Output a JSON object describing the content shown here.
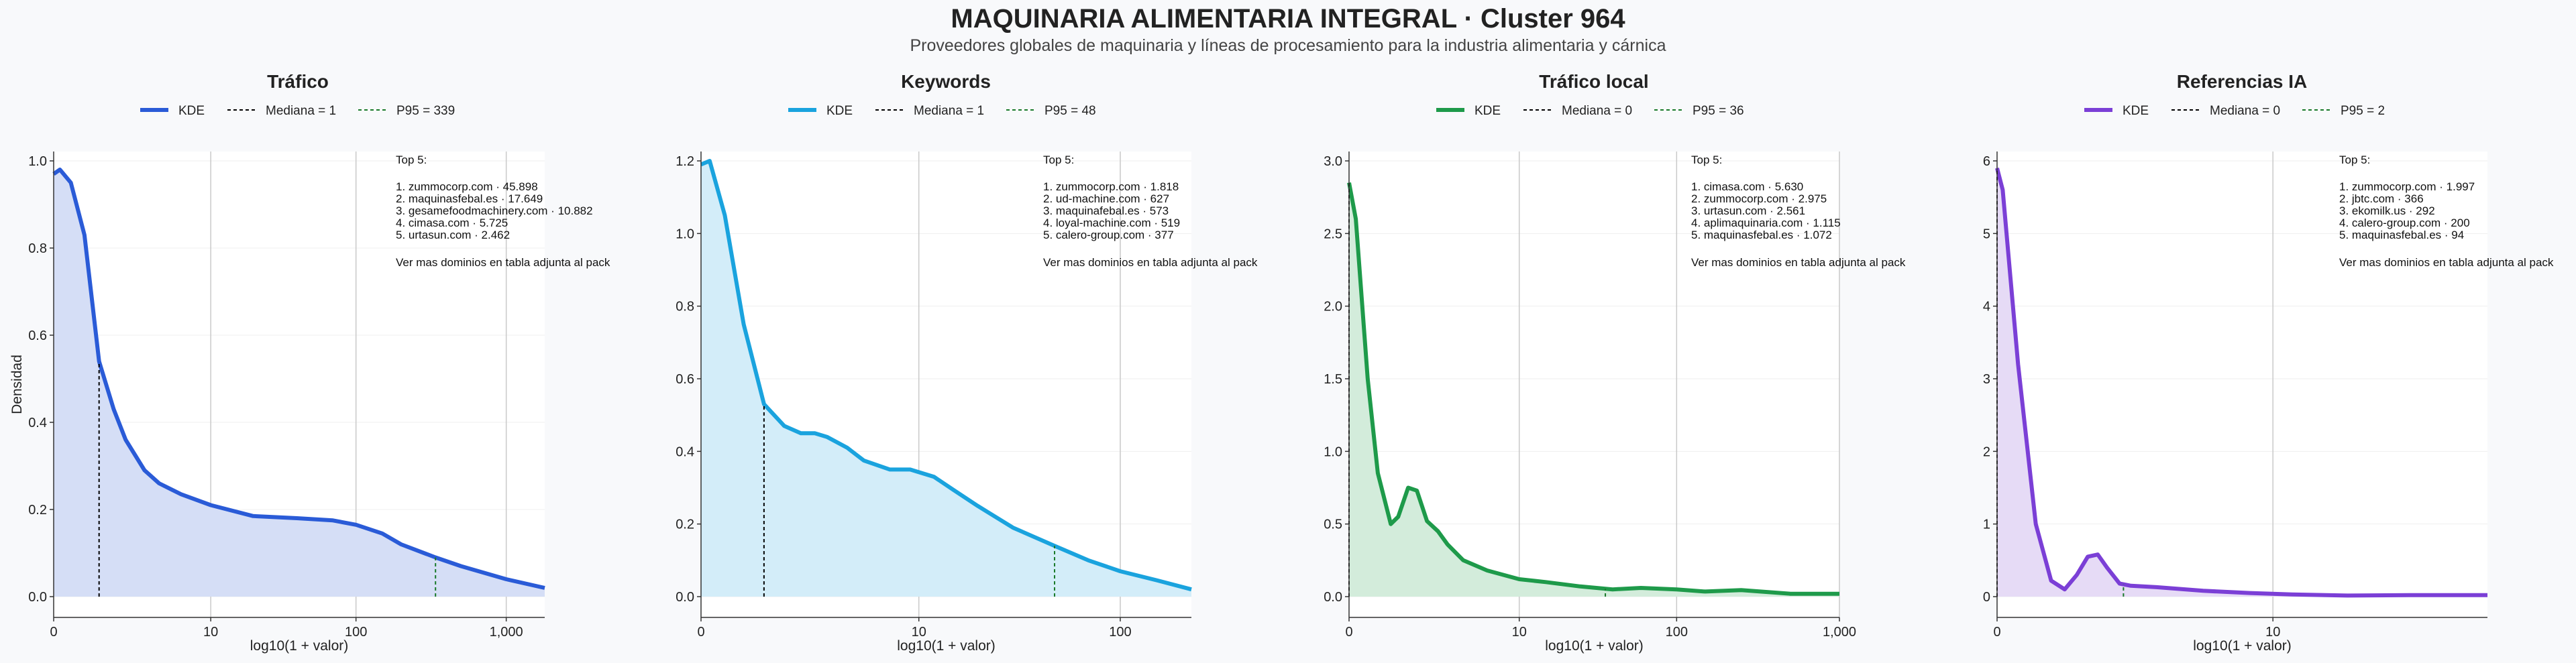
{
  "title": "MAQUINARIA ALIMENTARIA INTEGRAL · Cluster 964",
  "subtitle": "Proveedores globales de maquinaria y líneas de procesamiento para la industria alimentaria y cárnica",
  "chart_data": [
    {
      "type": "area",
      "title": "Tráfico",
      "color": "#2a5bd7",
      "fill": "#d5def6",
      "xlabel": "log10(1 + valor)",
      "ylabel": "Densidad",
      "x_scale": "log10(1+x)",
      "xlim": [
        0,
        1800
      ],
      "ylim": [
        0,
        1.0
      ],
      "xticks": [
        0,
        10,
        100,
        1000
      ],
      "xtick_labels": [
        "0",
        "10",
        "100",
        "1,000"
      ],
      "yticks": [
        0,
        0.2,
        0.4,
        0.6,
        0.8,
        1.0
      ],
      "ytick_labels": [
        "0.0",
        "0.2",
        "0.4",
        "0.6",
        "0.8",
        "1.0"
      ],
      "grid": "vertical at x ticks",
      "legend": [
        "KDE",
        "Mediana = 1",
        "P95 = 339"
      ],
      "median": 1,
      "p95": 339,
      "kde": {
        "x": [
          0,
          0.1,
          0.3,
          0.6,
          1,
          1.5,
          2,
          3,
          4,
          6,
          10,
          20,
          40,
          70,
          100,
          150,
          200,
          339,
          500,
          1000,
          1800
        ],
        "y": [
          0.97,
          0.98,
          0.95,
          0.83,
          0.54,
          0.43,
          0.36,
          0.29,
          0.26,
          0.235,
          0.21,
          0.185,
          0.18,
          0.175,
          0.165,
          0.145,
          0.12,
          0.09,
          0.07,
          0.04,
          0.02
        ]
      },
      "top5": {
        "heading": "Top 5:",
        "items": [
          "1. zummocorp.com · 45.898",
          "2. maquinasfebal.es · 17.649",
          "3. gesamefoodmachinery.com · 10.882",
          "4. cimasa.com · 5.725",
          "5. urtasun.com · 2.462"
        ],
        "note": "Ver mas dominios en tabla adjunta al pack"
      }
    },
    {
      "type": "area",
      "title": "Keywords",
      "color": "#1aa3de",
      "fill": "#d3edf9",
      "xlabel": "log10(1 + valor)",
      "x_scale": "log10(1+x)",
      "xlim": [
        0,
        220
      ],
      "ylim": [
        0,
        1.2
      ],
      "xticks": [
        0,
        10,
        100
      ],
      "xtick_labels": [
        "0",
        "10",
        "100"
      ],
      "yticks": [
        0,
        0.2,
        0.4,
        0.6,
        0.8,
        1.0,
        1.2
      ],
      "ytick_labels": [
        "0.0",
        "0.2",
        "0.4",
        "0.6",
        "0.8",
        "1.0",
        "1.2"
      ],
      "grid": "vertical at x ticks",
      "legend": [
        "KDE",
        "Mediana = 1",
        "P95 = 48"
      ],
      "median": 1,
      "p95": 48,
      "kde": {
        "x": [
          0,
          0.1,
          0.3,
          0.6,
          1,
          1.5,
          2,
          2.5,
          3,
          4,
          5,
          7,
          9,
          12,
          15,
          20,
          30,
          48,
          70,
          100,
          150,
          220
        ],
        "y": [
          1.19,
          1.2,
          1.05,
          0.75,
          0.53,
          0.47,
          0.45,
          0.45,
          0.44,
          0.41,
          0.375,
          0.35,
          0.35,
          0.33,
          0.295,
          0.25,
          0.19,
          0.14,
          0.1,
          0.07,
          0.045,
          0.02
        ]
      },
      "top5": {
        "heading": "Top 5:",
        "items": [
          "1. zummocorp.com · 1.818",
          "2. ud-machine.com · 627",
          "3. maquinafebal.es · 573",
          "4. loyal-machine.com · 519",
          "5. calero-group.com · 377"
        ],
        "note": "Ver mas dominios en tabla adjunta al pack"
      }
    },
    {
      "type": "area",
      "title": "Tráfico local",
      "color": "#1e9a4a",
      "fill": "#d3ecdb",
      "xlabel": "log10(1 + valor)",
      "x_scale": "log10(1+x)",
      "xlim": [
        0,
        1000
      ],
      "ylim": [
        0,
        3.0
      ],
      "xticks": [
        0,
        10,
        100,
        1000
      ],
      "xtick_labels": [
        "0",
        "10",
        "100",
        "1,000"
      ],
      "yticks": [
        0,
        0.5,
        1.0,
        1.5,
        2.0,
        2.5,
        3.0
      ],
      "ytick_labels": [
        "0.0",
        "0.5",
        "1.0",
        "1.5",
        "2.0",
        "2.5",
        "3.0"
      ],
      "grid": "vertical at x ticks",
      "legend": [
        "KDE",
        "Mediana = 0",
        "P95 = 36"
      ],
      "median": 0,
      "p95": 36,
      "kde": {
        "x": [
          0,
          0.1,
          0.3,
          0.5,
          0.8,
          1.0,
          1.3,
          1.6,
          2,
          2.5,
          3,
          4,
          6,
          10,
          15,
          25,
          40,
          60,
          100,
          150,
          250,
          500,
          1000
        ],
        "y": [
          2.85,
          2.6,
          1.5,
          0.85,
          0.5,
          0.55,
          0.75,
          0.73,
          0.52,
          0.45,
          0.36,
          0.25,
          0.18,
          0.12,
          0.1,
          0.07,
          0.05,
          0.06,
          0.05,
          0.035,
          0.045,
          0.02,
          0.02
        ]
      },
      "top5": {
        "heading": "Top 5:",
        "items": [
          "1. cimasa.com · 5.630",
          "2. zummocorp.com · 2.975",
          "3. urtasun.com · 2.561",
          "4. aplimaquinaria.com · 1.115",
          "5. maquinasfebal.es · 1.072"
        ],
        "note": "Ver mas dominios en tabla adjunta al pack"
      }
    },
    {
      "type": "area",
      "title": "Referencias IA",
      "color": "#7b3fd6",
      "fill": "#e6dbf6",
      "xlabel": "log10(1 + valor)",
      "x_scale": "log10(1+x)",
      "xlim": [
        0,
        70
      ],
      "ylim": [
        0,
        6
      ],
      "xticks": [
        0,
        10
      ],
      "xtick_labels": [
        "0",
        "10"
      ],
      "yticks": [
        0,
        1,
        2,
        3,
        4,
        5,
        6
      ],
      "ytick_labels": [
        "0",
        "1",
        "2",
        "3",
        "4",
        "5",
        "6"
      ],
      "grid": "vertical at x ticks",
      "legend": [
        "KDE",
        "Mediana = 0",
        "P95 = 2"
      ],
      "median": 0,
      "p95": 2,
      "kde": {
        "x": [
          0,
          0.05,
          0.2,
          0.4,
          0.6,
          0.8,
          1.0,
          1.2,
          1.4,
          1.6,
          1.9,
          2.2,
          3,
          5,
          8,
          12,
          20,
          35,
          70
        ],
        "y": [
          5.9,
          5.6,
          3.2,
          1.0,
          0.22,
          0.1,
          0.3,
          0.55,
          0.58,
          0.4,
          0.18,
          0.15,
          0.13,
          0.08,
          0.05,
          0.03,
          0.015,
          0.02,
          0.02
        ]
      },
      "top5": {
        "heading": "Top 5:",
        "items": [
          "1. zummocorp.com · 1.997",
          "2. jbtc.com · 366",
          "3. ekomilk.us · 292",
          "4. calero-group.com · 200",
          "5. maquinasfebal.es · 94"
        ],
        "note": "Ver mas dominios en tabla adjunta al pack"
      }
    }
  ]
}
